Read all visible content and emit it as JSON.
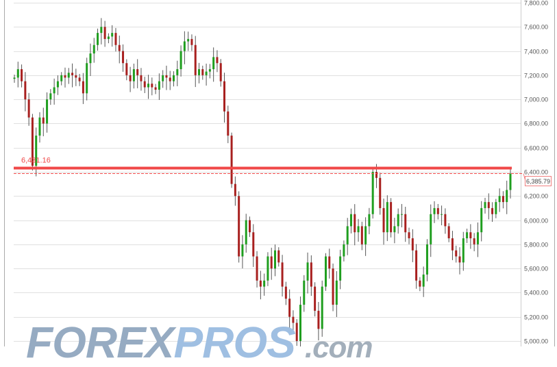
{
  "chart_data": {
    "type": "candlestick",
    "title": "",
    "xlabel": "",
    "ylabel": "",
    "ylim": [
      5000,
      7800
    ],
    "yticks": [
      "5,000.00",
      "5,200.00",
      "5,400.00",
      "5,600.00",
      "5,800.00",
      "6,000.00",
      "6,200.00",
      "6,400.00",
      "6,600.00",
      "6,800.00",
      "7,000.00",
      "7,200.00",
      "7,400.00",
      "7,600.00",
      "7,800.00"
    ],
    "ytick_values": [
      5000,
      5200,
      5400,
      5600,
      5800,
      6000,
      6200,
      6400,
      6600,
      6800,
      7000,
      7200,
      7400,
      7600,
      7800
    ],
    "grid": true,
    "colors": {
      "up": "#1f9e1f",
      "down": "#a8201f",
      "level_line": "#f04848"
    },
    "first_open": 7170,
    "closes": [
      7180,
      7250,
      7150,
      7000,
      6850,
      6450,
      6700,
      6850,
      6800,
      7000,
      7050,
      7100,
      7150,
      7200,
      7180,
      7220,
      7200,
      7180,
      7150,
      7050,
      7300,
      7380,
      7450,
      7550,
      7600,
      7500,
      7520,
      7550,
      7450,
      7400,
      7300,
      7200,
      7150,
      7250,
      7200,
      7150,
      7100,
      7130,
      7100,
      7080,
      7150,
      7200,
      7180,
      7150,
      7200,
      7250,
      7400,
      7480,
      7500,
      7450,
      7200,
      7250,
      7200,
      7230,
      7250,
      7350,
      7300,
      7150,
      6900,
      6700,
      6300,
      6200,
      5700,
      5800,
      6000,
      5900,
      5700,
      5500,
      5450,
      5500,
      5700,
      5600,
      5750,
      5650,
      5450,
      5350,
      5200,
      5150,
      5000,
      5300,
      5500,
      5650,
      5450,
      5250,
      5100,
      5450,
      5700,
      5600,
      5300,
      5500,
      5700,
      5800,
      5950,
      6050,
      5900,
      5950,
      5800,
      5950,
      6050,
      6400,
      6350,
      6100,
      5900,
      6150,
      5900,
      5950,
      6050,
      6050,
      5900,
      5850,
      5750,
      5500,
      5450,
      5550,
      5800,
      6050,
      6100,
      6050,
      6050,
      5950,
      5850,
      5750,
      5700,
      5650,
      5850,
      5900,
      5850,
      5800,
      5900,
      6100,
      6150,
      6100,
      6050,
      6150,
      6200,
      6150,
      6250,
      6385.79
    ],
    "level": {
      "label": "6,431.16",
      "value": 6431.16
    },
    "last_price": {
      "label": "6,385.79",
      "value": 6385.79
    }
  },
  "logo": {
    "part1": "FOREX",
    "part2": "PROS",
    "part3": ".com"
  }
}
